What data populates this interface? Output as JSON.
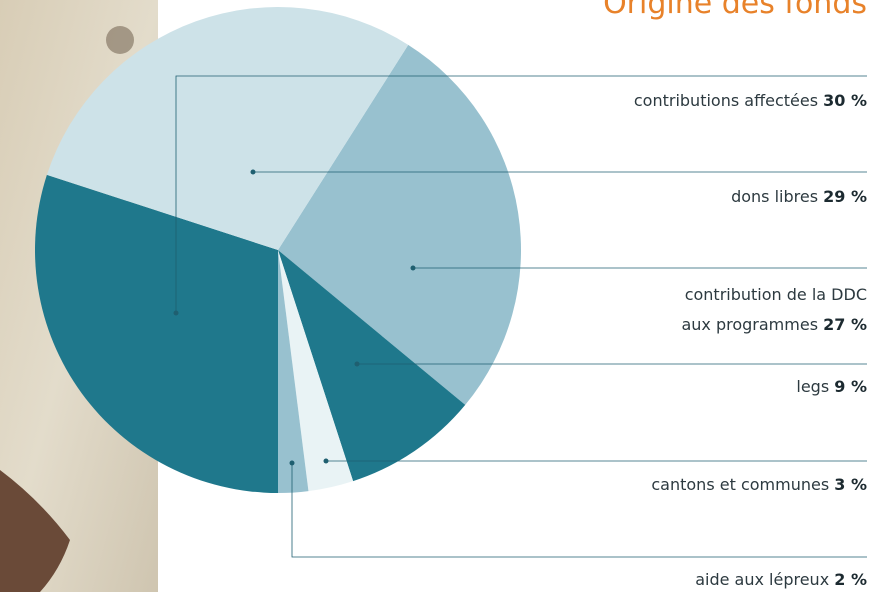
{
  "chart_data": {
    "type": "pie",
    "title": "Origine des fonds",
    "categories": [
      "contribution de la DDC aux programmes",
      "legs",
      "cantons et communes",
      "aide aux lépreux",
      "contributions affectées",
      "dons libres"
    ],
    "values": [
      27,
      9,
      3,
      2,
      30,
      29
    ],
    "value_labels": [
      "27 %",
      "9 %",
      "3 %",
      "2 %",
      "30 %",
      "29 %"
    ],
    "colors": [
      "#98c1cf",
      "#1f788c",
      "#e9f3f5",
      "#98c1cf",
      "#1f788c",
      "#cde2e8"
    ]
  }
}
